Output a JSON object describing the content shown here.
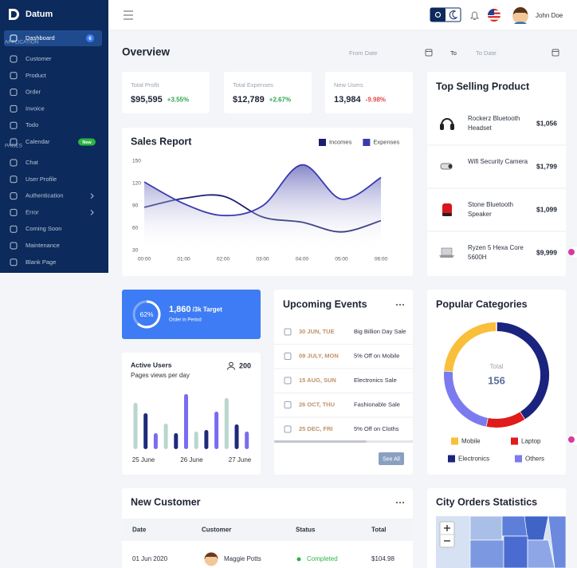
{
  "sidebar": {
    "brand": "Datum",
    "sections": [
      {
        "items": [
          {
            "label": "Dashboard",
            "badge": 6,
            "active": true
          }
        ]
      },
      {
        "header": "APPLICATION",
        "items": [
          {
            "label": "Customer"
          },
          {
            "label": "Product"
          },
          {
            "label": "Order"
          },
          {
            "label": "Invoice"
          },
          {
            "label": "Todo"
          },
          {
            "label": "Calendar",
            "badge": "New"
          }
        ]
      },
      {
        "header": "PAGES",
        "items": [
          {
            "label": "Chat"
          },
          {
            "label": "User Profile"
          },
          {
            "label": "Authentication",
            "expandable": true
          },
          {
            "label": "Error",
            "expandable": true
          },
          {
            "label": "Coming Soon"
          },
          {
            "label": "Maintenance"
          },
          {
            "label": "Blank Page"
          }
        ]
      }
    ]
  },
  "topbar": {
    "user": "John Doe"
  },
  "overview": {
    "title": "Overview",
    "from_label": "From Date",
    "to": "To",
    "to_label": "To Date"
  },
  "stats": [
    {
      "label": "Total Profit",
      "value": "$95,595",
      "change": "+3.55%"
    },
    {
      "label": "Total Expenses",
      "value": "$12,789",
      "change": "+2.67%"
    },
    {
      "label": "New Users",
      "value": "13,984",
      "change": "-9.98%"
    }
  ],
  "top_selling": {
    "title": "Top Selling Product",
    "products": [
      {
        "name": "Rockerz Bluetooth Headset",
        "price": "$1,056"
      },
      {
        "name": "Wifi Security Camera",
        "price": "$1,799"
      },
      {
        "name": "Stone Bluetooth Speaker",
        "price": "$1,099"
      },
      {
        "name": "Ryzen 5 Hexa Core 5600H",
        "price": "$9,999"
      }
    ]
  },
  "target": {
    "progress": 62,
    "progress_label": "62%",
    "value": "1,860",
    "target": "/3k Target",
    "caption": "Order in Period"
  },
  "events": {
    "title": "Upcoming Events",
    "items": [
      {
        "date": "30 JUN, TUE",
        "title": "Big Billion Day Sale"
      },
      {
        "date": "09 JULY, MON",
        "title": "5% Off on Mobile"
      },
      {
        "date": "15 AUG, SUN",
        "title": "Electronics Sale"
      },
      {
        "date": "26 OCT, THU",
        "title": "Fashionable Sale"
      },
      {
        "date": "25 DEC, FRI",
        "title": "5% Off on Cloths"
      }
    ],
    "button": "See All"
  },
  "new_customer": {
    "title": "New Customer",
    "columns": [
      "Date",
      "Customer",
      "Status",
      "Total"
    ],
    "rows": [
      [
        "01 Jun 2020",
        "Maggie Potts",
        "Completed",
        "$104.98"
      ]
    ]
  },
  "city_orders": {
    "title": "City Orders Statistics"
  },
  "chart_data": [
    {
      "type": "line",
      "title": "Sales Report",
      "categories": [
        "00:00",
        "01:00",
        "02:00",
        "03:00",
        "04:00",
        "05:00",
        "06:00"
      ],
      "series": [
        {
          "name": "Incomes",
          "color": "#1b1f6f",
          "values": [
            88,
            100,
            103,
            75,
            68,
            55,
            70
          ]
        },
        {
          "name": "Expenses",
          "color": "#3a3ab0",
          "values": [
            122,
            93,
            77,
            90,
            145,
            99,
            128
          ],
          "area": true
        }
      ],
      "ylim": [
        30,
        150
      ],
      "yticks": [
        30,
        60,
        90,
        120,
        150
      ],
      "grid": false
    },
    {
      "type": "bar",
      "title": "Active Users",
      "subtitle": "Pages views per day",
      "count": 200,
      "x_labels": [
        "25 June",
        "26 June",
        "27 June"
      ],
      "values": [
        58,
        45,
        20,
        32,
        20,
        69,
        22,
        24,
        47,
        64,
        31,
        22
      ],
      "colors": [
        "#b9d6cf",
        "#1f2a7a",
        "#7a6cf2"
      ],
      "ylim": [
        0,
        75
      ]
    },
    {
      "type": "pie",
      "title": "Popular Categories",
      "center_label": "Total",
      "center_value": 156,
      "categories": [
        "Electronics",
        "Laptop",
        "Others",
        "Mobile"
      ],
      "values": [
        64,
        19,
        36,
        37
      ],
      "colors": [
        "#1a237e",
        "#e01b1b",
        "#7b7bef",
        "#f9bf3b"
      ],
      "donut": true
    }
  ]
}
